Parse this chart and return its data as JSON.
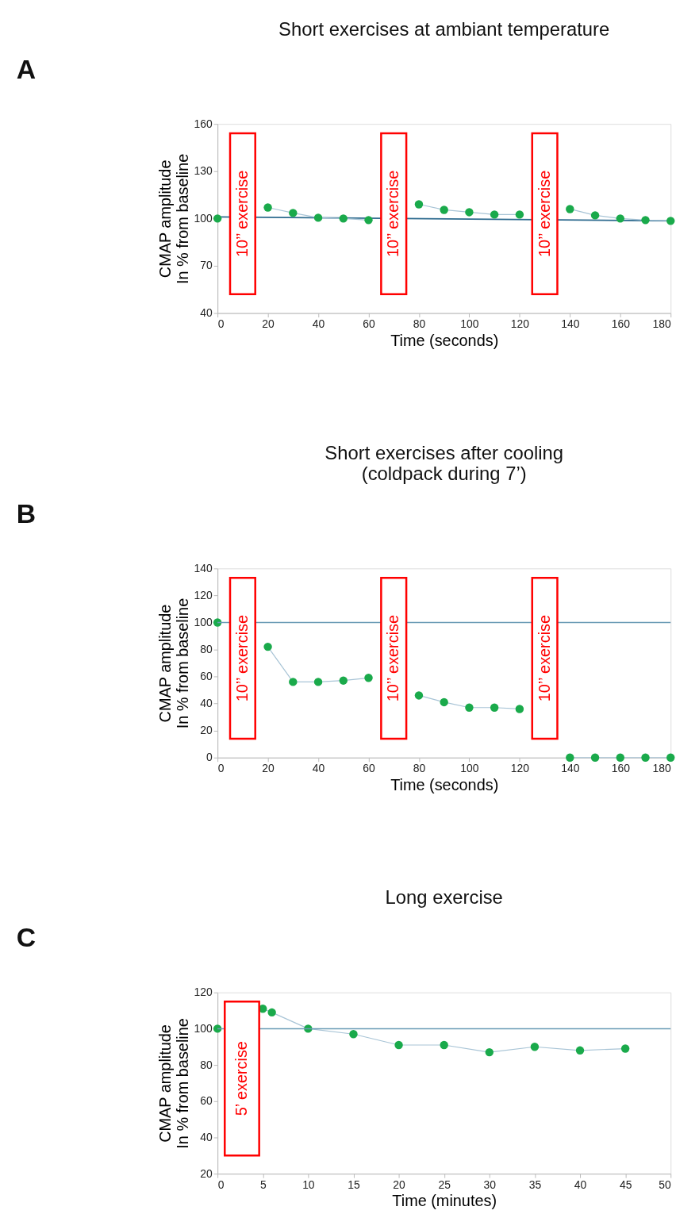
{
  "chart_data": [
    {
      "type": "line",
      "title": "Short exercises at ambiant temperature",
      "xlabel": "Time (seconds)",
      "ylabel": "CMAP amplitude\nIn % from baseline",
      "annotations": [
        "A"
      ],
      "xlim": [
        0,
        180
      ],
      "xticks": [
        0,
        20,
        40,
        60,
        80,
        100,
        120,
        140,
        160,
        180
      ],
      "ylim": [
        40,
        160
      ],
      "yticks": [
        40,
        70,
        100,
        130,
        160
      ],
      "grid": false,
      "marker": "circle",
      "series": [
        {
          "type": "line",
          "color": "#2e6b8f",
          "marker": "none",
          "x": [
            0,
            180
          ],
          "values": [
            101,
            98.5
          ]
        },
        {
          "color": "#1aaa4b",
          "x": [
            0
          ],
          "values": [
            100
          ]
        },
        {
          "color": "#1aaa4b",
          "x": [
            20,
            30,
            40,
            50,
            60
          ],
          "values": [
            107,
            103.5,
            100.5,
            100,
            99
          ]
        },
        {
          "color": "#1aaa4b",
          "x": [
            80,
            90,
            100,
            110,
            120
          ],
          "values": [
            109,
            105.5,
            104,
            102.5,
            102.5
          ]
        },
        {
          "color": "#1aaa4b",
          "x": [
            140,
            150,
            160,
            170,
            180
          ],
          "values": [
            106,
            102,
            100,
            99,
            98.5
          ]
        }
      ],
      "bands": [
        {
          "axis": "x",
          "from": 5,
          "to": 15,
          "label": "10’’ exercise",
          "color": "#ff0000"
        },
        {
          "axis": "x",
          "from": 65,
          "to": 75,
          "label": "10’’ exercise",
          "color": "#ff0000"
        },
        {
          "axis": "x",
          "from": 125,
          "to": 135,
          "label": "10’’ exercise",
          "color": "#ff0000"
        }
      ]
    },
    {
      "type": "line",
      "title": "Short exercises after cooling\n(coldpack during 7’)",
      "xlabel": "Time (seconds)",
      "ylabel": "CMAP amplitude\nIn % from baseline",
      "annotations": [
        "B"
      ],
      "xlim": [
        0,
        180
      ],
      "xticks": [
        0,
        20,
        40,
        60,
        80,
        100,
        120,
        140,
        160,
        180
      ],
      "ylim": [
        0,
        140
      ],
      "yticks": [
        0,
        20,
        40,
        60,
        80,
        100,
        120,
        140
      ],
      "grid": false,
      "marker": "circle",
      "ref_lines": [
        {
          "axis": "y",
          "value": 100,
          "color": "#6a9bb5"
        }
      ],
      "series": [
        {
          "color": "#1aaa4b",
          "x": [
            0
          ],
          "values": [
            100
          ]
        },
        {
          "color": "#1aaa4b",
          "x": [
            20,
            30,
            40,
            50,
            60
          ],
          "values": [
            82,
            56,
            56,
            57,
            59
          ]
        },
        {
          "color": "#1aaa4b",
          "x": [
            80,
            90,
            100,
            110,
            120
          ],
          "values": [
            46,
            41,
            37,
            37,
            36
          ]
        },
        {
          "color": "#1aaa4b",
          "x": [
            140,
            150,
            160,
            170,
            180
          ],
          "values": [
            0,
            0,
            0,
            0,
            0
          ]
        }
      ],
      "bands": [
        {
          "axis": "x",
          "from": 5,
          "to": 15,
          "label": "10’’ exercise",
          "color": "#ff0000"
        },
        {
          "axis": "x",
          "from": 65,
          "to": 75,
          "label": "10’’ exercise",
          "color": "#ff0000"
        },
        {
          "axis": "x",
          "from": 125,
          "to": 135,
          "label": "10’’ exercise",
          "color": "#ff0000"
        }
      ]
    },
    {
      "type": "line",
      "title": "Long exercise",
      "xlabel": "Time (minutes)",
      "ylabel": "CMAP amplitude\nIn % from baseline",
      "annotations": [
        "C"
      ],
      "xlim": [
        0,
        50
      ],
      "xticks": [
        0,
        5,
        10,
        15,
        20,
        25,
        30,
        35,
        40,
        45,
        50
      ],
      "ylim": [
        20,
        120
      ],
      "yticks": [
        20,
        40,
        60,
        80,
        100,
        120
      ],
      "grid": false,
      "marker": "circle",
      "ref_lines": [
        {
          "axis": "y",
          "value": 100,
          "color": "#6a9bb5"
        }
      ],
      "series": [
        {
          "color": "#1aaa4b",
          "x": [
            0
          ],
          "values": [
            100
          ]
        },
        {
          "color": "#1aaa4b",
          "x": [
            5,
            6,
            10,
            15,
            20,
            25,
            30,
            35,
            40,
            45
          ],
          "values": [
            111,
            109,
            100,
            97,
            91,
            91,
            87,
            90,
            88,
            89
          ]
        }
      ],
      "bands": [
        {
          "axis": "x",
          "from": 0.8,
          "to": 4.6,
          "label": "5’ exercise",
          "color": "#ff0000"
        }
      ]
    }
  ]
}
